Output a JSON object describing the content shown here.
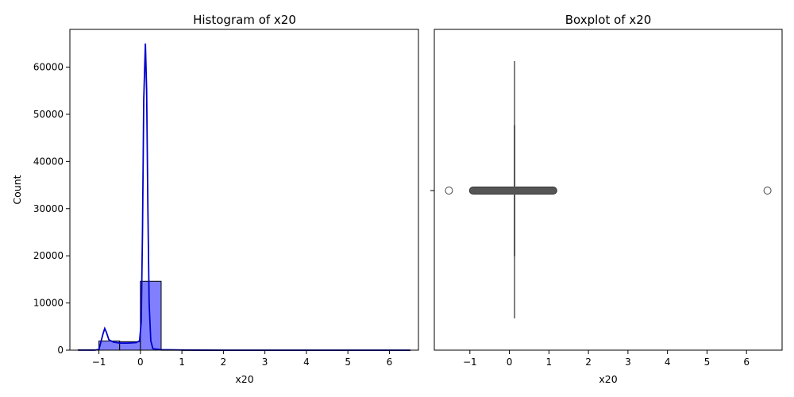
{
  "chart_data": [
    {
      "type": "bar",
      "title": "Histogram of x20",
      "xlabel": "x20",
      "ylabel": "Count",
      "xlim": [
        -1.7,
        6.7
      ],
      "ylim": [
        0,
        68000
      ],
      "xticks": [
        -1,
        0,
        1,
        2,
        3,
        4,
        5,
        6
      ],
      "yticks": [
        0,
        10000,
        20000,
        30000,
        40000,
        50000,
        60000
      ],
      "bar_color": "#8080ff",
      "edge_color": "#000000",
      "bins": [
        {
          "x0": -1.5,
          "x1": -1.0,
          "count": 80
        },
        {
          "x0": -1.0,
          "x1": -0.5,
          "count": 1950
        },
        {
          "x0": -0.5,
          "x1": 0.0,
          "count": 1800
        },
        {
          "x0": 0.0,
          "x1": 0.5,
          "count": 14600
        },
        {
          "x0": 0.5,
          "x1": 1.0,
          "count": 60
        },
        {
          "x0": 1.0,
          "x1": 1.5,
          "count": 25
        },
        {
          "x0": 1.5,
          "x1": 2.0,
          "count": 0
        },
        {
          "x0": 2.0,
          "x1": 2.5,
          "count": 0
        },
        {
          "x0": 2.5,
          "x1": 3.0,
          "count": 0
        },
        {
          "x0": 3.0,
          "x1": 3.5,
          "count": 0
        },
        {
          "x0": 3.5,
          "x1": 4.0,
          "count": 0
        },
        {
          "x0": 4.0,
          "x1": 4.5,
          "count": 0
        },
        {
          "x0": 4.5,
          "x1": 5.0,
          "count": 0
        },
        {
          "x0": 5.0,
          "x1": 5.5,
          "count": 0
        },
        {
          "x0": 5.5,
          "x1": 6.0,
          "count": 0
        },
        {
          "x0": 6.0,
          "x1": 6.5,
          "count": 5
        }
      ],
      "kde": {
        "color": "#0000cc",
        "points": [
          [
            -1.5,
            0
          ],
          [
            -1.1,
            0
          ],
          [
            -1.0,
            150
          ],
          [
            -0.95,
            1800
          ],
          [
            -0.9,
            3500
          ],
          [
            -0.86,
            4600
          ],
          [
            -0.82,
            3800
          ],
          [
            -0.76,
            2200
          ],
          [
            -0.65,
            1700
          ],
          [
            -0.5,
            1500
          ],
          [
            -0.3,
            1500
          ],
          [
            -0.1,
            1600
          ],
          [
            -0.02,
            2000
          ],
          [
            0.02,
            6000
          ],
          [
            0.05,
            25000
          ],
          [
            0.08,
            53000
          ],
          [
            0.12,
            65000
          ],
          [
            0.15,
            55000
          ],
          [
            0.18,
            30000
          ],
          [
            0.21,
            10000
          ],
          [
            0.25,
            2000
          ],
          [
            0.3,
            300
          ],
          [
            0.5,
            100
          ],
          [
            1.0,
            40
          ],
          [
            1.5,
            10
          ],
          [
            2.0,
            0
          ],
          [
            6.5,
            0
          ]
        ]
      }
    },
    {
      "type": "box",
      "title": "Boxplot of x20",
      "xlabel": "x20",
      "xlim": [
        -1.9,
        6.9
      ],
      "xticks": [
        -1,
        0,
        1,
        2,
        3,
        4,
        5,
        6
      ],
      "color": "#555555",
      "q1": 0.12,
      "median": 0.13,
      "q3": 0.14,
      "whisker_low": 0.1,
      "whisker_high": 0.16,
      "outlier_band": [
        -0.93,
        1.12
      ],
      "outliers": [
        -1.53,
        6.53
      ]
    }
  ]
}
